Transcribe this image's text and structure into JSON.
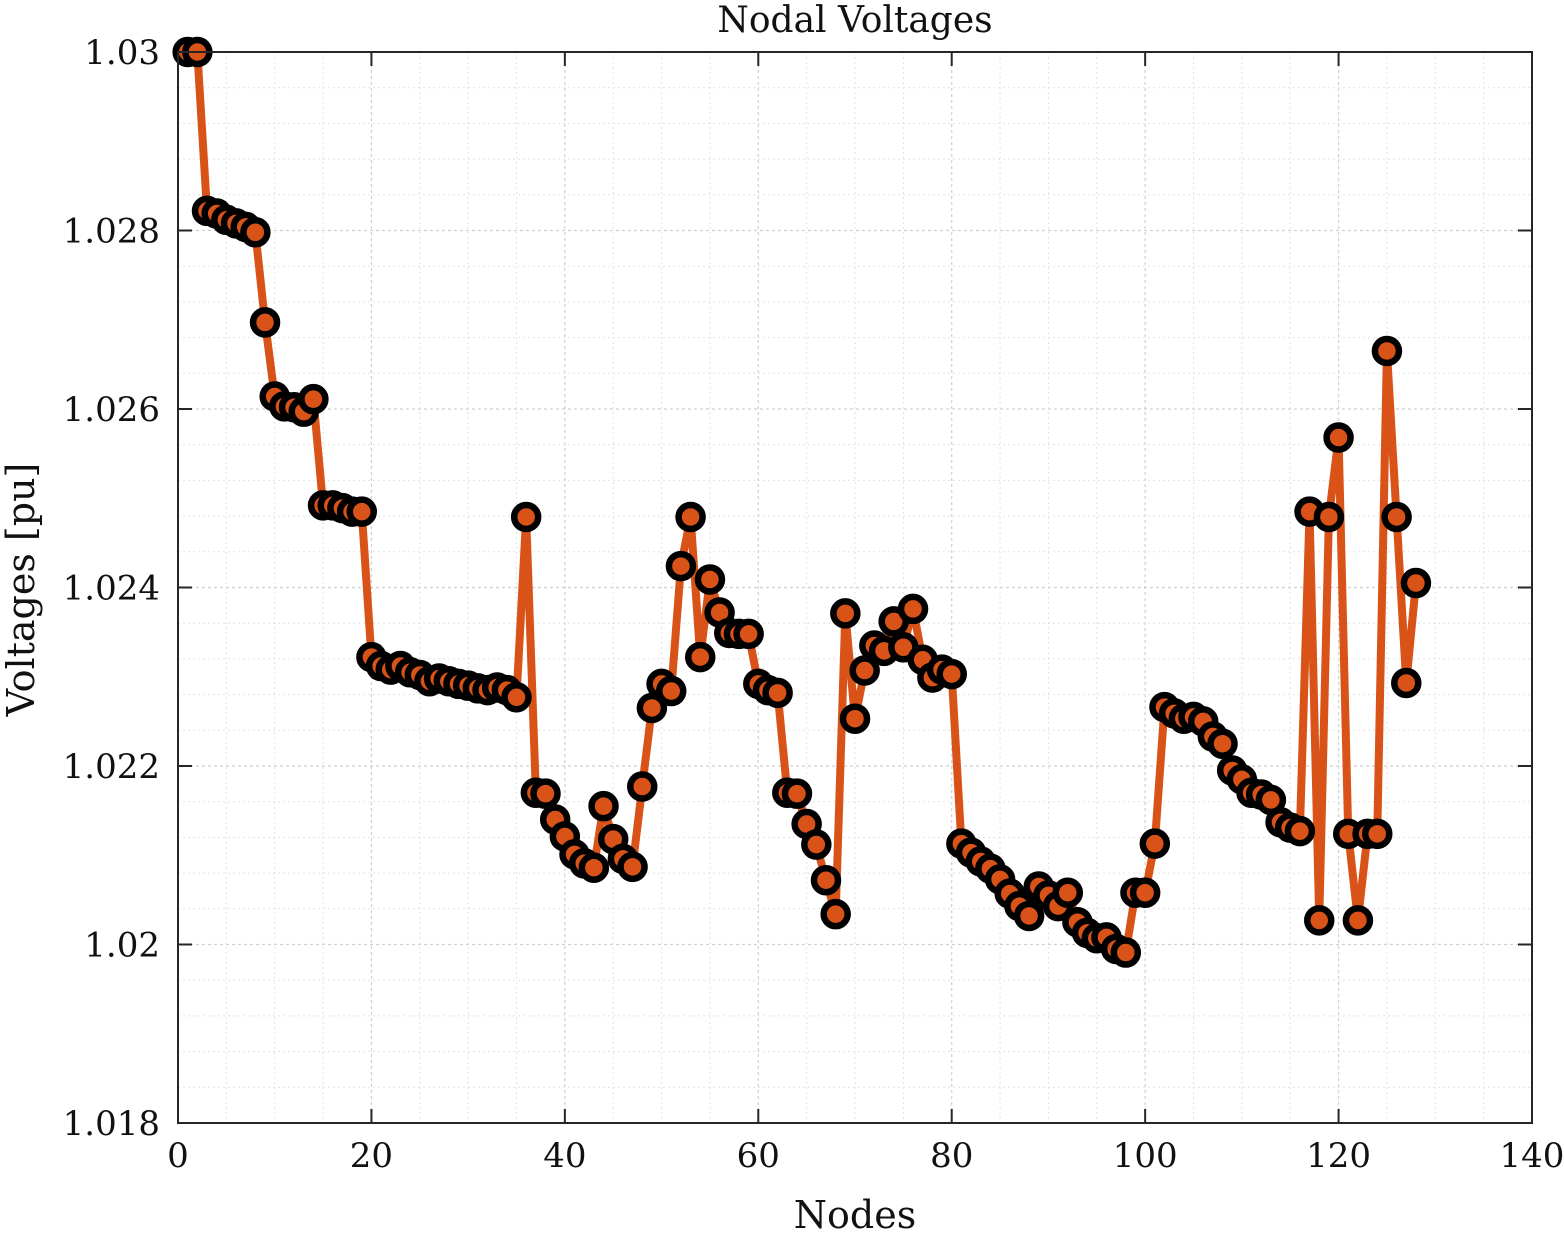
{
  "chart_data": {
    "type": "line",
    "title": "Nodal Voltages",
    "xlabel": "Nodes",
    "ylabel": "Voltages [pu]",
    "xlim": [
      0,
      140
    ],
    "ylim": [
      1.018,
      1.03
    ],
    "x_ticks": [
      0,
      20,
      40,
      60,
      80,
      100,
      120,
      140
    ],
    "y_ticks": [
      1.018,
      1.02,
      1.022,
      1.024,
      1.026,
      1.028,
      1.03
    ],
    "x_tick_labels": [
      "0",
      "20",
      "40",
      "60",
      "80",
      "100",
      "120",
      "140"
    ],
    "y_tick_labels": [
      "1.018",
      "1.02",
      "1.022",
      "1.024",
      "1.026",
      "1.028",
      "1.03"
    ],
    "grid": true,
    "minor_grid": true,
    "colors": {
      "line": "#D95319",
      "marker_edge": "#000000",
      "marker_face": "#D95319"
    },
    "series": [
      {
        "x": [
          1,
          2,
          3,
          4,
          5,
          6,
          7,
          8,
          9,
          10,
          11,
          12,
          13,
          14,
          15,
          16,
          17,
          18,
          19,
          20,
          21,
          22,
          23,
          24,
          25,
          26,
          27,
          28,
          29,
          30,
          31,
          32,
          33,
          34,
          35,
          36,
          37,
          38,
          39,
          40,
          41,
          42,
          43,
          44,
          45,
          46,
          47,
          48,
          49,
          50,
          51,
          52,
          53,
          54,
          55,
          56,
          57,
          58,
          59,
          60,
          61,
          62,
          63,
          64,
          65,
          66,
          67,
          68,
          69,
          70,
          71,
          72,
          73,
          74,
          75,
          76,
          77,
          78,
          79,
          80,
          81,
          82,
          83,
          84,
          85,
          86,
          87,
          88,
          89,
          90,
          91,
          92,
          93,
          94,
          95,
          96,
          97,
          98,
          99,
          100,
          101,
          102,
          103,
          104,
          105,
          106,
          107,
          108,
          109,
          110,
          111,
          112,
          113,
          114,
          115,
          116,
          117,
          118,
          119,
          120,
          121,
          122,
          123,
          124,
          125,
          126,
          127,
          128
        ],
        "values": [
          1.03,
          1.03,
          1.02822,
          1.02819,
          1.02812,
          1.02808,
          1.02804,
          1.02798,
          1.02697,
          1.02614,
          1.02603,
          1.02602,
          1.02597,
          1.02611,
          1.02492,
          1.02492,
          1.02489,
          1.02485,
          1.02485,
          1.02322,
          1.02312,
          1.02308,
          1.02312,
          1.02305,
          1.02302,
          1.02295,
          1.02298,
          1.02295,
          1.02292,
          1.0229,
          1.02287,
          1.02285,
          1.02288,
          1.02285,
          1.02277,
          1.02479,
          1.0217,
          1.02169,
          1.0214,
          1.02121,
          1.02101,
          1.02091,
          1.02086,
          1.02155,
          1.02118,
          1.02096,
          1.02087,
          1.02177,
          1.02265,
          1.02292,
          1.02284,
          1.02424,
          1.02479,
          1.02322,
          1.02409,
          1.02372,
          1.02349,
          1.02348,
          1.02348,
          1.02292,
          1.02285,
          1.02282,
          1.0217,
          1.02169,
          1.02135,
          1.02112,
          1.02072,
          1.02034,
          1.02371,
          1.02253,
          1.02307,
          1.02335,
          1.02329,
          1.02362,
          1.02333,
          1.02376,
          1.02319,
          1.02299,
          1.02308,
          1.02303,
          1.02113,
          1.02103,
          1.02093,
          1.02085,
          1.02073,
          1.02057,
          1.02043,
          1.02032,
          1.02065,
          1.02055,
          1.02043,
          1.02058,
          1.02025,
          1.02013,
          1.02007,
          1.02008,
          1.01995,
          1.01991,
          1.02058,
          1.02058,
          1.02113,
          1.02266,
          1.02259,
          1.02253,
          1.02255,
          1.0225,
          1.02233,
          1.02225,
          1.02195,
          1.02185,
          1.0217,
          1.02168,
          1.02162,
          1.02137,
          1.02131,
          1.02127,
          1.02485,
          1.02027,
          1.02479,
          1.02568,
          1.02124,
          1.02027,
          1.02124,
          1.02124,
          1.02665,
          1.02479,
          1.02293,
          1.02405
        ]
      }
    ]
  }
}
